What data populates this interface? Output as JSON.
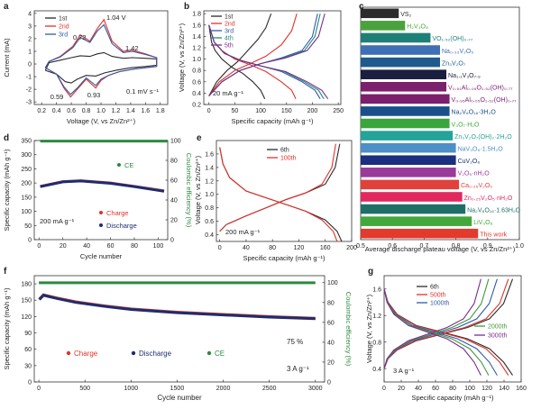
{
  "figure": {
    "panels": {
      "a": {
        "letter": "a",
        "xlabel": "Voltage (V, vs Zn/Zn²⁺)",
        "ylabel": "Current (mA)",
        "xticks": [
          "0.2",
          "0.4",
          "0.6",
          "0.8",
          "1.0",
          "1.2",
          "1.4",
          "1.6",
          "1.8"
        ],
        "yticks": [
          "-3",
          "-2",
          "-1",
          "0",
          "1",
          "2",
          "3",
          "4"
        ],
        "annotations": [
          "1.04 V",
          "0.72",
          "1.42",
          "0.59",
          "0.93",
          "0.1 mV s⁻¹"
        ],
        "legend": [
          "1st",
          "2nd",
          "3rd"
        ]
      },
      "b": {
        "letter": "b",
        "xlabel": "Specific capacity (mAh g⁻¹)",
        "ylabel": "Voltage (V, vs Zn/Zn²⁺)",
        "xticks": [
          "0",
          "50",
          "100",
          "150",
          "200",
          "250"
        ],
        "yticks": [
          "0.2",
          "0.4",
          "0.6",
          "0.8",
          "1.0",
          "1.2",
          "1.4",
          "1.6",
          "1.8"
        ],
        "annotations": [
          "20 mA g⁻¹"
        ],
        "legend": [
          "1st",
          "2nd",
          "3rd",
          "4th",
          "5th"
        ]
      },
      "c": {
        "letter": "c",
        "xlabel": "Average discharge plateau voltage (V, vs Zn/Zn²⁺)",
        "xticks": [
          "0.5",
          "0.6",
          "0.7",
          "0.8",
          "0.9",
          "1.0"
        ],
        "materials": [
          "VS₂",
          "H₂V₃O₈",
          "VO₁.₅₂(OH)₀.₇₇",
          "Na₀.₃₃V₂O₅",
          "Zn₃V₂O₇",
          "Na₁.₁V₃O₇.₉",
          "V₀.₉₁Al₀.₀₉O₁.₅₂(OH)₀.₇₇",
          "V₀.₉₅Al₀.₀₅O₁.₅₂(OH)₀.₇₇",
          "Na₂V₆O₁₆·3H₂O",
          "V₃O₇·H₂O",
          "Zn₃V₂O₇(OH)₂·2H₂O",
          "NaV₃O₈·1.5H₂O",
          "CuV₂O₆",
          "V₂O₅·nH₂O",
          "Ca₀.₂₅V₂O₅",
          "Zn₀.₂₅V₂O₅·nH₂O",
          "Na₂V₆O₁₆·1.63H₂O",
          "LiV₃O₈",
          "This work"
        ]
      },
      "d": {
        "letter": "d",
        "xlabel": "Cycle number",
        "ylabel": "Specific capacity (mAh g⁻¹)",
        "y2label": "Coulombic efficiency (%)",
        "xticks": [
          "0",
          "20",
          "40",
          "60",
          "80",
          "100"
        ],
        "yticks": [
          "0",
          "50",
          "100",
          "150",
          "200",
          "250",
          "300",
          "350"
        ],
        "y2ticks": [
          "0",
          "20",
          "40",
          "60",
          "80",
          "100"
        ],
        "annotations": [
          "200 mA g⁻¹"
        ],
        "legend": [
          "CE",
          "Charge",
          "Discharge"
        ]
      },
      "e": {
        "letter": "e",
        "xlabel": "Specific capacity (mAh g⁻¹)",
        "ylabel": "Voltage (V, vs Zn/Zn²⁺)",
        "xticks": [
          "0",
          "40",
          "80",
          "120",
          "160",
          "200"
        ],
        "yticks": [
          "0.4",
          "0.6",
          "0.8",
          "1.0",
          "1.2",
          "1.4",
          "1.6"
        ],
        "annotations": [
          "200 mA g⁻¹"
        ],
        "legend": [
          "6th",
          "100th"
        ]
      },
      "f": {
        "letter": "f",
        "xlabel": "Cycle number",
        "ylabel": "Specific capacity (mAh g⁻¹)",
        "y2label": "Coulombic efficiency (%)",
        "xticks": [
          "0",
          "500",
          "1000",
          "1500",
          "2000",
          "2500",
          "3000"
        ],
        "yticks": [
          "0",
          "30",
          "60",
          "90",
          "120",
          "150",
          "180"
        ],
        "y2ticks": [
          "0",
          "20",
          "40",
          "60",
          "80",
          "100"
        ],
        "annotations": [
          "75 %",
          "3 A g⁻¹"
        ],
        "legend": [
          "Charge",
          "Discharge",
          "CE"
        ]
      },
      "g": {
        "letter": "g",
        "xlabel": "Specific capacity (mAh g⁻¹)",
        "ylabel": "Voltage (V, vs Zn/Zn²⁺)",
        "xticks": [
          "0",
          "20",
          "40",
          "60",
          "80",
          "100",
          "120",
          "140",
          "160"
        ],
        "yticks": [
          "0.4",
          "0.8",
          "1.2",
          "1.6"
        ],
        "annotations": [
          "3 A g⁻¹"
        ],
        "legend": [
          "6th",
          "500th",
          "1000th",
          "2000th",
          "3000th"
        ]
      }
    }
  },
  "chart_data": [
    {
      "panel": "a",
      "type": "line",
      "xlim": [
        0.1,
        1.9
      ],
      "ylim": [
        -3.2,
        4.2
      ],
      "annotations": [
        "1.04 V",
        "0.72",
        "1.42",
        "0.59",
        "0.93",
        "0.1 mV s⁻¹"
      ],
      "series": [
        {
          "name": "1st",
          "color": "#2a2a2a",
          "x": [
            0.25,
            0.4,
            0.52,
            0.6,
            0.68,
            0.8,
            0.93,
            1.05,
            1.2,
            1.4,
            1.6,
            1.75,
            1.75,
            1.6,
            1.42,
            1.3,
            1.15,
            1.04,
            0.95,
            0.85,
            0.72,
            0.6,
            0.45,
            0.3,
            0.25
          ],
          "y": [
            -0.5,
            -0.8,
            -1.4,
            -1.5,
            -1.2,
            -0.9,
            -0.95,
            -0.7,
            -0.5,
            -0.3,
            -0.2,
            -0.1,
            0.4,
            0.45,
            0.5,
            0.45,
            0.6,
            0.9,
            0.8,
            0.6,
            0.65,
            0.5,
            0.3,
            0.1,
            -0.5
          ]
        },
        {
          "name": "2nd",
          "color": "#e0322b",
          "x": [
            0.25,
            0.4,
            0.5,
            0.59,
            0.68,
            0.8,
            0.93,
            1.0,
            1.1,
            1.25,
            1.45,
            1.6,
            1.75,
            1.75,
            1.6,
            1.42,
            1.3,
            1.15,
            1.04,
            0.95,
            0.85,
            0.72,
            0.62,
            0.45,
            0.3,
            0.25
          ],
          "y": [
            -0.3,
            -0.8,
            -1.9,
            -2.6,
            -2.0,
            -1.2,
            -1.9,
            -1.3,
            -0.9,
            -0.6,
            -0.4,
            -0.3,
            -0.2,
            0.5,
            0.8,
            1.1,
            1.0,
            1.8,
            3.5,
            2.8,
            1.8,
            2.3,
            1.4,
            0.6,
            0.2,
            -0.3
          ]
        },
        {
          "name": "3rd",
          "color": "#2e5aac",
          "x": [
            0.25,
            0.4,
            0.5,
            0.59,
            0.68,
            0.8,
            0.93,
            1.0,
            1.1,
            1.25,
            1.45,
            1.6,
            1.75,
            1.75,
            1.6,
            1.42,
            1.3,
            1.15,
            1.04,
            0.95,
            0.85,
            0.72,
            0.62,
            0.45,
            0.3,
            0.25
          ],
          "y": [
            -0.3,
            -0.8,
            -1.8,
            -2.4,
            -1.9,
            -1.1,
            -1.7,
            -1.2,
            -0.9,
            -0.6,
            -0.4,
            -0.3,
            -0.2,
            0.5,
            0.75,
            1.0,
            0.9,
            1.6,
            3.1,
            2.6,
            1.7,
            2.1,
            1.3,
            0.55,
            0.2,
            -0.3
          ]
        }
      ]
    },
    {
      "panel": "b",
      "type": "line",
      "xlim": [
        -10,
        255
      ],
      "ylim": [
        0.2,
        1.85
      ],
      "series": [
        {
          "name": "1st",
          "color": "#2a2a2a",
          "discharge_x": [
            0,
            5,
            12,
            25,
            45,
            65,
            85,
            100,
            108
          ],
          "discharge_y": [
            1.6,
            1.3,
            1.15,
            1.0,
            0.85,
            0.75,
            0.6,
            0.45,
            0.3
          ],
          "charge_x": [
            0,
            15,
            35,
            55,
            75,
            95,
            110,
            120
          ],
          "charge_y": [
            0.35,
            0.6,
            0.8,
            0.95,
            1.15,
            1.35,
            1.55,
            1.8
          ]
        },
        {
          "name": "2nd",
          "color": "#e0322b",
          "discharge_x": [
            0,
            10,
            25,
            50,
            80,
            110,
            140,
            160,
            168
          ],
          "discharge_y": [
            1.6,
            1.3,
            1.15,
            1.0,
            0.9,
            0.78,
            0.6,
            0.45,
            0.3
          ],
          "charge_x": [
            0,
            20,
            50,
            80,
            110,
            140,
            160,
            170
          ],
          "charge_y": [
            0.35,
            0.6,
            0.8,
            0.92,
            1.05,
            1.25,
            1.5,
            1.8
          ]
        },
        {
          "name": "3rd",
          "color": "#2e5aac",
          "discharge_x": [
            0,
            10,
            30,
            60,
            100,
            140,
            180,
            205,
            215
          ],
          "discharge_y": [
            1.6,
            1.3,
            1.1,
            0.98,
            0.88,
            0.78,
            0.6,
            0.45,
            0.3
          ],
          "charge_x": [
            0,
            25,
            60,
            100,
            140,
            180,
            200,
            210
          ],
          "charge_y": [
            0.35,
            0.6,
            0.8,
            0.92,
            1.02,
            1.15,
            1.4,
            1.8
          ]
        },
        {
          "name": "4th",
          "color": "#1f8a7a",
          "discharge_x": [
            0,
            10,
            30,
            60,
            100,
            145,
            185,
            212,
            222
          ],
          "discharge_y": [
            1.6,
            1.3,
            1.1,
            0.98,
            0.88,
            0.78,
            0.6,
            0.45,
            0.3
          ],
          "charge_x": [
            0,
            25,
            60,
            100,
            145,
            185,
            205,
            215
          ],
          "charge_y": [
            0.35,
            0.6,
            0.8,
            0.92,
            1.02,
            1.15,
            1.4,
            1.8
          ]
        },
        {
          "name": "5th",
          "color": "#7d2d8c",
          "discharge_x": [
            0,
            10,
            30,
            60,
            100,
            148,
            190,
            218,
            230
          ],
          "discharge_y": [
            1.6,
            1.3,
            1.1,
            0.98,
            0.88,
            0.78,
            0.6,
            0.45,
            0.3
          ],
          "charge_x": [
            0,
            25,
            60,
            100,
            148,
            190,
            212,
            224
          ],
          "charge_y": [
            0.35,
            0.6,
            0.8,
            0.92,
            1.02,
            1.15,
            1.4,
            1.8
          ]
        }
      ]
    },
    {
      "panel": "c",
      "type": "bar",
      "orientation": "horizontal",
      "xlim": [
        0.5,
        1.0
      ],
      "categories": [
        "VS₂",
        "H₂V₃O₈",
        "VO₁.₅₂(OH)₀.₇₇",
        "Na₀.₃₃V₂O₅",
        "Zn₃V₂O₇",
        "Na₁.₁V₃O₇.₉",
        "V₀.₉₁Al₀.₀₉O₁.₅₂(OH)₀.₇₇",
        "V₀.₉₅Al₀.₀₅O₁.₅₂(OH)₀.₇₇",
        "Na₂V₆O₁₆·3H₂O",
        "V₃O₇·H₂O",
        "Zn₃V₂O₇(OH)₂·2H₂O",
        "NaV₃O₈·1.5H₂O",
        "CuV₂O₆",
        "V₂O₅·nH₂O",
        "Ca₀.₂₅V₂O₅",
        "Zn₀.₂₅V₂O₅·nH₂O",
        "Na₂V₆O₁₆·1.63H₂O",
        "LiV₃O₈",
        "This work"
      ],
      "values": [
        0.62,
        0.64,
        0.72,
        0.75,
        0.75,
        0.77,
        0.77,
        0.78,
        0.78,
        0.78,
        0.79,
        0.8,
        0.8,
        0.8,
        0.81,
        0.82,
        0.83,
        0.85,
        0.87
      ],
      "colors": [
        "#2b2b2b",
        "#4aa23c",
        "#1e7f78",
        "#3f6fb5",
        "#1e5b8c",
        "#1a1f3f",
        "#7c1f6c",
        "#7c1f6c",
        "#1a4f8a",
        "#3aa53a",
        "#23a39a",
        "#4d8fc7",
        "#1a2f80",
        "#9a3a9a",
        "#e0413b",
        "#e2285f",
        "#1f6f68",
        "#42a83c",
        "#e23a2c"
      ]
    },
    {
      "panel": "d",
      "type": "line",
      "xlim": [
        -4,
        108
      ],
      "ylim": [
        0,
        350
      ],
      "y2lim": [
        0,
        100
      ],
      "series": [
        {
          "name": "CE",
          "axis": "y2",
          "color": "#2b8a3e",
          "x": [
            1,
            108
          ],
          "y": [
            99.5,
            99.5
          ]
        },
        {
          "name": "Charge",
          "color": "#e0322b",
          "x": [
            1,
            20,
            35,
            60,
            80,
            105
          ],
          "y": [
            188,
            205,
            208,
            200,
            188,
            172
          ]
        },
        {
          "name": "Discharge",
          "color": "#1d2d6e",
          "x": [
            1,
            20,
            35,
            60,
            80,
            105
          ],
          "y": [
            187,
            204,
            207,
            199,
            187,
            171
          ]
        }
      ]
    },
    {
      "panel": "e",
      "type": "line",
      "xlim": [
        -5,
        200
      ],
      "ylim": [
        0.3,
        1.8
      ],
      "series": [
        {
          "name": "6th",
          "color": "#2a2a2a",
          "discharge_x": [
            0,
            5,
            15,
            40,
            70,
            100,
            130,
            160,
            178,
            185
          ],
          "discharge_y": [
            1.7,
            1.45,
            1.25,
            1.05,
            0.95,
            0.85,
            0.75,
            0.62,
            0.45,
            0.3
          ],
          "charge_x": [
            0,
            10,
            40,
            70,
            100,
            130,
            160,
            175,
            182
          ],
          "charge_y": [
            0.45,
            0.55,
            0.68,
            0.8,
            0.92,
            1.02,
            1.15,
            1.4,
            1.75
          ]
        },
        {
          "name": "100th",
          "color": "#e0322b",
          "discharge_x": [
            0,
            5,
            15,
            40,
            70,
            100,
            130,
            155,
            172,
            178
          ],
          "discharge_y": [
            1.7,
            1.45,
            1.25,
            1.05,
            0.95,
            0.85,
            0.75,
            0.62,
            0.45,
            0.3
          ],
          "charge_x": [
            0,
            10,
            40,
            70,
            100,
            130,
            155,
            170,
            176
          ],
          "charge_y": [
            0.45,
            0.55,
            0.68,
            0.8,
            0.92,
            1.02,
            1.15,
            1.4,
            1.75
          ]
        }
      ]
    },
    {
      "panel": "f",
      "type": "scatter",
      "xlim": [
        -50,
        3100
      ],
      "ylim": [
        0,
        195
      ],
      "y2lim": [
        0,
        107
      ],
      "annotations": [
        "75 %",
        "3 A g⁻¹"
      ],
      "series": [
        {
          "name": "CE",
          "axis": "y2",
          "color": "#2b8a3e",
          "x": [
            0,
            3000
          ],
          "y": [
            99.8,
            99.8
          ]
        },
        {
          "name": "Charge",
          "color": "#e0322b",
          "x": [
            5,
            50,
            100,
            200,
            400,
            700,
            1000,
            1500,
            2000,
            2500,
            3000
          ],
          "y": [
            152,
            160,
            158,
            154,
            147,
            140,
            134,
            128,
            124,
            120,
            117
          ]
        },
        {
          "name": "Discharge",
          "color": "#1d2d6e",
          "x": [
            5,
            50,
            100,
            200,
            400,
            700,
            1000,
            1500,
            2000,
            2500,
            3000
          ],
          "y": [
            151,
            159,
            157,
            153,
            146,
            139,
            133,
            127,
            123,
            119,
            116
          ]
        }
      ]
    },
    {
      "panel": "g",
      "type": "line",
      "xlim": [
        0,
        160
      ],
      "ylim": [
        0.2,
        1.8
      ],
      "series": [
        {
          "name": "6th",
          "color": "#2a2a2a",
          "capacity": 150
        },
        {
          "name": "500th",
          "color": "#e0322b",
          "capacity": 145
        },
        {
          "name": "1000th",
          "color": "#2e5aac",
          "capacity": 132
        },
        {
          "name": "2000th",
          "color": "#3f9a3a",
          "capacity": 122
        },
        {
          "name": "3000th",
          "color": "#7d2d8c",
          "capacity": 113
        }
      ]
    }
  ]
}
